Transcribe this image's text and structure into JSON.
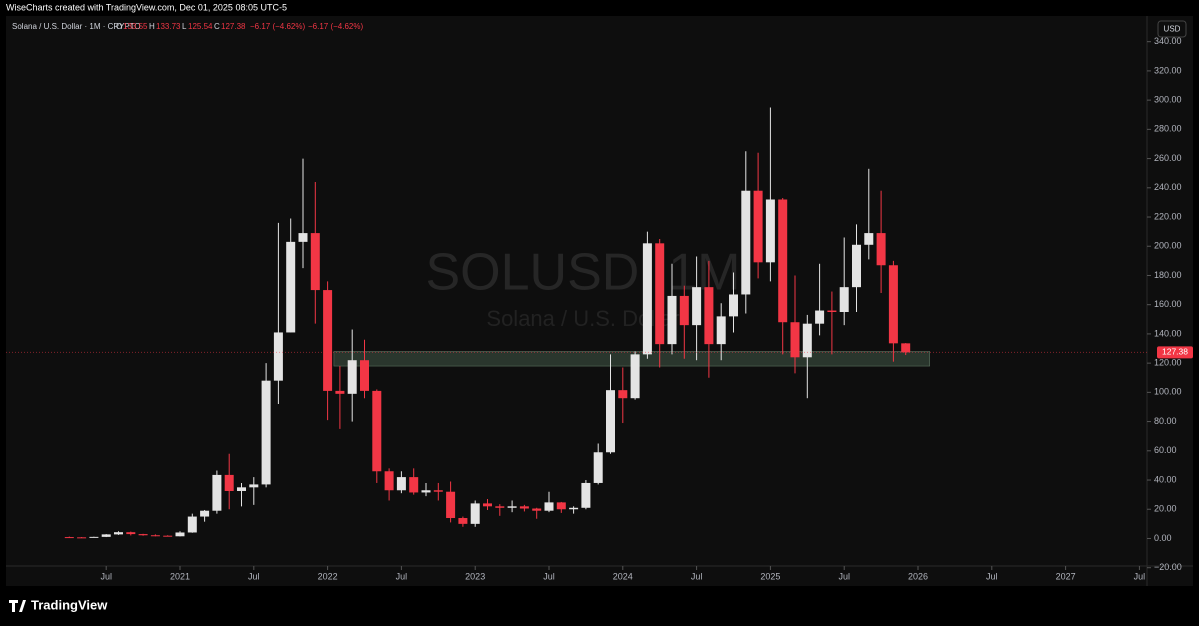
{
  "header": {
    "credit": "WiseCharts created with TradingView.com, Dec 01, 2025 08:05 UTC-5"
  },
  "legend": {
    "instrument": "Solana / U.S. Dollar · 1M · CRYPTO",
    "open_label": "O",
    "high_label": "H",
    "low_label": "L",
    "close_label": "C",
    "change": "−6.17 (−4.62%)",
    "change_repeat": "−6.17 (−4.62%)"
  },
  "watermark": {
    "symbol": "SOLUSD, 1M",
    "description": "Solana / U.S. Dollar"
  },
  "currency_button": "USD",
  "footer": {
    "brand": "TradingView"
  },
  "chart_data": {
    "type": "candlestick",
    "x": [
      "2020-04",
      "2020-05",
      "2020-06",
      "2020-07",
      "2020-08",
      "2020-09",
      "2020-10",
      "2020-11",
      "2020-12",
      "2021-01",
      "2021-02",
      "2021-03",
      "2021-04",
      "2021-05",
      "2021-06",
      "2021-07",
      "2021-08",
      "2021-09",
      "2021-10",
      "2021-11",
      "2021-12",
      "2022-01",
      "2022-02",
      "2022-03",
      "2022-04",
      "2022-05",
      "2022-06",
      "2022-07",
      "2022-08",
      "2022-09",
      "2022-10",
      "2022-11",
      "2022-12",
      "2023-01",
      "2023-02",
      "2023-03",
      "2023-04",
      "2023-05",
      "2023-06",
      "2023-07",
      "2023-08",
      "2023-09",
      "2023-10",
      "2023-11",
      "2023-12",
      "2024-01",
      "2024-02",
      "2024-03",
      "2024-04",
      "2024-05",
      "2024-06",
      "2024-07",
      "2024-08",
      "2024-09",
      "2024-10",
      "2024-11",
      "2024-12",
      "2025-01",
      "2025-02",
      "2025-03",
      "2025-04",
      "2025-05",
      "2025-06",
      "2025-07",
      "2025-08",
      "2025-09",
      "2025-10",
      "2025-11",
      "2025-12"
    ],
    "open": [
      0.95,
      0.78,
      0.63,
      1.1,
      2.8,
      4.3,
      3.0,
      2.2,
      1.9,
      1.5,
      4.1,
      15.0,
      19.0,
      43.5,
      32.5,
      35.0,
      37.0,
      108,
      141,
      203,
      209,
      170,
      101,
      99,
      122,
      101,
      46,
      33,
      42,
      31.5,
      33,
      32,
      14,
      10,
      24,
      22,
      21,
      22,
      20.5,
      19,
      24.7,
      20,
      21,
      38,
      59,
      101.5,
      96,
      126,
      202,
      133,
      166,
      146,
      172,
      133,
      152,
      167,
      238,
      189,
      232,
      148,
      124,
      147,
      156,
      155,
      172,
      201,
      209,
      187,
      133.55
    ],
    "high": [
      1.31,
      0.98,
      1.2,
      3.0,
      4.9,
      4.7,
      3.2,
      2.8,
      2.2,
      4.9,
      17.0,
      19.5,
      46.5,
      58.0,
      38.0,
      42.0,
      120,
      216,
      219,
      260,
      244,
      176,
      118,
      143,
      136,
      102,
      48,
      46,
      48,
      38,
      38,
      39,
      15,
      26,
      27,
      23.5,
      26,
      23,
      21,
      32,
      25,
      22,
      40,
      65,
      126,
      117,
      128,
      210,
      205,
      188,
      173,
      193,
      190,
      161,
      182,
      265,
      264,
      295,
      233,
      180,
      153,
      188,
      169,
      206,
      215,
      253,
      238,
      190,
      133.73
    ],
    "low": [
      0.51,
      0.55,
      0.62,
      0.98,
      2.5,
      2.1,
      1.9,
      1.5,
      1.4,
      1.4,
      3.9,
      11.5,
      17.0,
      20.0,
      22.0,
      23.0,
      35.0,
      92,
      141,
      185,
      147,
      81,
      75,
      80,
      96,
      38,
      26,
      31,
      30,
      29,
      26,
      11,
      8,
      8,
      19.5,
      15.5,
      18,
      18.5,
      13.5,
      18,
      17.5,
      17,
      20,
      37,
      58,
      79,
      95,
      123,
      117,
      126,
      123,
      122,
      110,
      122,
      141,
      154,
      178,
      176,
      126,
      113,
      96,
      139,
      126,
      146,
      155,
      191,
      168,
      121,
      125.54
    ],
    "close": [
      0.78,
      0.63,
      1.1,
      2.8,
      4.3,
      3.0,
      2.2,
      1.9,
      1.5,
      4.1,
      15.0,
      19.0,
      43.5,
      32.5,
      35.0,
      37.0,
      108,
      141,
      203,
      209,
      170,
      101,
      99,
      122,
      101,
      46,
      33,
      42,
      31.5,
      33,
      32,
      14,
      10,
      24,
      22,
      21,
      22,
      20.5,
      19,
      24.7,
      20,
      21,
      38,
      59,
      101.5,
      96,
      126,
      202,
      133,
      166,
      146,
      172,
      133,
      152,
      167,
      238,
      189,
      232,
      148,
      124,
      147,
      156,
      155,
      172,
      201,
      209,
      187,
      133.55,
      127.38
    ],
    "up_color": "#e4e4e4",
    "down_color": "#f23645",
    "zone": {
      "low": 118,
      "high": 128,
      "from": "2022-02",
      "color": "#2f3d32"
    },
    "ylim": [
      -25,
      348
    ],
    "yticks": [
      {
        "value": -20,
        "label": "−20.00"
      },
      {
        "value": 0,
        "label": "0.00"
      },
      {
        "value": 20,
        "label": "20.00"
      },
      {
        "value": 40,
        "label": "40.00"
      },
      {
        "value": 60,
        "label": "60.00"
      },
      {
        "value": 80,
        "label": "80.00"
      },
      {
        "value": 100,
        "label": "100.00"
      },
      {
        "value": 120,
        "label": "120.00"
      },
      {
        "value": 140,
        "label": "140.00"
      },
      {
        "value": 160,
        "label": "160.00"
      },
      {
        "value": 180,
        "label": "180.00"
      },
      {
        "value": 200,
        "label": "200.00"
      },
      {
        "value": 220,
        "label": "220.00"
      },
      {
        "value": 240,
        "label": "240.00"
      },
      {
        "value": 260,
        "label": "260.00"
      },
      {
        "value": 280,
        "label": "280.00"
      },
      {
        "value": 300,
        "label": "300.00"
      },
      {
        "value": 320,
        "label": "320.00"
      },
      {
        "value": 340,
        "label": "340.00"
      }
    ],
    "xticks": [
      {
        "value": "2020-07",
        "label": "Jul"
      },
      {
        "value": "2021-01",
        "label": "2021"
      },
      {
        "value": "2021-07",
        "label": "Jul"
      },
      {
        "value": "2022-01",
        "label": "2022"
      },
      {
        "value": "2022-07",
        "label": "Jul"
      },
      {
        "value": "2023-01",
        "label": "2023"
      },
      {
        "value": "2023-07",
        "label": "Jul"
      },
      {
        "value": "2024-01",
        "label": "2024"
      },
      {
        "value": "2024-07",
        "label": "Jul"
      },
      {
        "value": "2025-01",
        "label": "2025"
      },
      {
        "value": "2025-07",
        "label": "Jul"
      },
      {
        "value": "2026-01",
        "label": "2026"
      },
      {
        "value": "2026-07",
        "label": "Jul"
      },
      {
        "value": "2027-01",
        "label": "2027"
      },
      {
        "value": "2027-07",
        "label": "Jul"
      }
    ],
    "grid": false
  }
}
